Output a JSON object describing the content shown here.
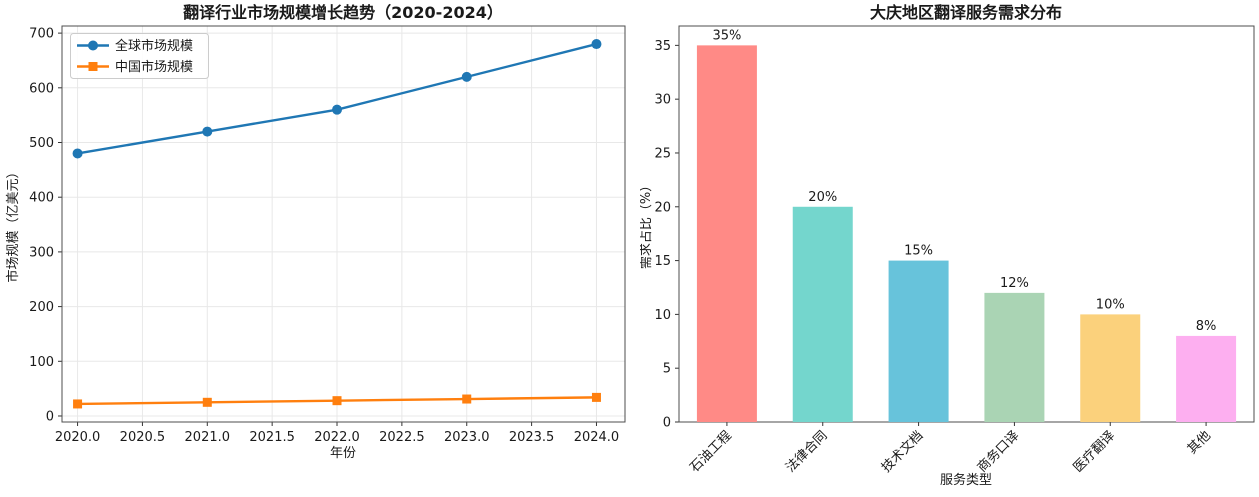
{
  "figure": {
    "background": "#ffffff",
    "text_color": "#1a1a1a",
    "spine_color": "#4d4d4d",
    "grid_color": "#e8e8e8"
  },
  "chart_data": [
    {
      "type": "line",
      "title": "翻译行业市场规模增长趋势（2020-2024）",
      "xlabel": "年份",
      "ylabel": "市场规模（亿美元）",
      "x": [
        2020,
        2021,
        2022,
        2023,
        2024
      ],
      "xtick_labels": [
        "2020.0",
        "2020.5",
        "2021.0",
        "2021.5",
        "2022.0",
        "2022.5",
        "2023.0",
        "2023.5",
        "2024.0"
      ],
      "xtick_values": [
        2020.0,
        2020.5,
        2021.0,
        2021.5,
        2022.0,
        2022.5,
        2023.0,
        2023.5,
        2024.0
      ],
      "ytick_values": [
        0,
        100,
        200,
        300,
        400,
        500,
        600,
        700
      ],
      "xlim": [
        2019.88,
        2024.22
      ],
      "ylim": [
        -11,
        713
      ],
      "grid": true,
      "legend_position": "upper-left",
      "series": [
        {
          "name": "全球市场规模",
          "color": "#1f77b4",
          "marker": "circle",
          "values": [
            480,
            520,
            560,
            620,
            680
          ]
        },
        {
          "name": "中国市场规模",
          "color": "#ff7f0e",
          "marker": "square",
          "values": [
            22,
            25,
            28,
            31,
            34
          ]
        }
      ]
    },
    {
      "type": "bar",
      "title": "大庆地区翻译服务需求分布",
      "xlabel": "服务类型",
      "ylabel": "需求占比（%）",
      "categories": [
        "石油工程",
        "法律合同",
        "技术文档",
        "商务口译",
        "医疗翻译",
        "其他"
      ],
      "values": [
        35,
        20,
        15,
        12,
        10,
        8
      ],
      "value_labels": [
        "35%",
        "20%",
        "15%",
        "12%",
        "10%",
        "8%"
      ],
      "bar_colors": [
        "#FF8A86",
        "#74D6CD",
        "#67C3DB",
        "#AAD4B4",
        "#FBD17C",
        "#FDAFF0"
      ],
      "ytick_values": [
        0,
        5,
        10,
        15,
        20,
        25,
        30,
        35
      ],
      "ylim": [
        0,
        36.8
      ],
      "grid": false,
      "xtick_rotation_deg": 45
    }
  ]
}
